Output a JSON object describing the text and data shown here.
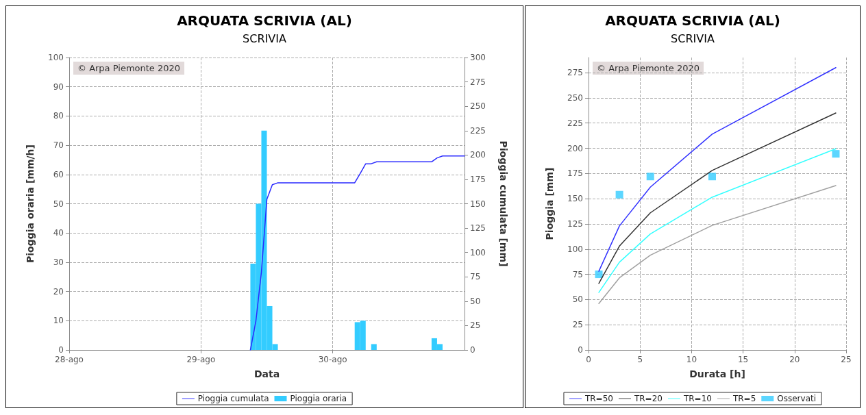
{
  "chart_data": [
    {
      "type": "bar",
      "title": "ARQUATA SCRIVIA (AL)",
      "subtitle": "SCRIVIA",
      "xlabel": "Data",
      "ylabel": "Pioggia oraria [mm/h]",
      "y2label": "Pioggia cumulata [mm]",
      "annotations": [
        "© Arpa Piemonte 2020"
      ],
      "xlim": [
        "2020-08-28",
        "2020-08-31"
      ],
      "xticks": [
        {
          "value": "2020-08-28",
          "label": "28-ago"
        },
        {
          "value": "2020-08-29",
          "label": "29-ago"
        },
        {
          "value": "2020-08-30",
          "label": "30-ago"
        }
      ],
      "ylim": [
        0,
        100
      ],
      "yticks": [
        0,
        10,
        20,
        30,
        40,
        50,
        60,
        70,
        80,
        90,
        100
      ],
      "y2lim": [
        0,
        300
      ],
      "y2ticks": [
        0,
        25,
        50,
        75,
        100,
        125,
        150,
        175,
        200,
        225,
        250,
        275,
        300
      ],
      "grid": true,
      "legend": "bottom",
      "series": [
        {
          "name": "Pioggia cumulata",
          "type": "line",
          "axis": "y2",
          "color": "#2a2aff",
          "x": [
            "2020-08-29T09:00",
            "2020-08-29T10:00",
            "2020-08-29T11:00",
            "2020-08-29T12:00",
            "2020-08-29T13:00",
            "2020-08-29T14:00",
            "2020-08-30T04:00",
            "2020-08-30T05:00",
            "2020-08-30T06:00",
            "2020-08-30T07:00",
            "2020-08-30T08:00",
            "2020-08-30T18:00",
            "2020-08-30T19:00",
            "2020-08-30T20:00",
            "2020-08-31T00:00"
          ],
          "values": [
            0,
            29.5,
            79.5,
            154.5,
            169.5,
            171.5,
            171.5,
            181,
            191,
            191,
            193,
            193,
            197,
            199,
            199
          ]
        },
        {
          "name": "Pioggia oraria",
          "axis": "y",
          "color": "#33ccff",
          "x": [
            "2020-08-29T09:30",
            "2020-08-29T10:30",
            "2020-08-29T11:30",
            "2020-08-29T12:30",
            "2020-08-29T13:30",
            "2020-08-30T04:30",
            "2020-08-30T05:30",
            "2020-08-30T07:30",
            "2020-08-30T18:30",
            "2020-08-30T19:30"
          ],
          "values": [
            29.5,
            50,
            75,
            15,
            2,
            9.5,
            10,
            2,
            4,
            2
          ]
        }
      ]
    },
    {
      "type": "line",
      "title": "ARQUATA SCRIVIA (AL)",
      "subtitle": "SCRIVIA",
      "xlabel": "Durata [h]",
      "ylabel": "Pioggia [mm]",
      "annotations": [
        "© Arpa Piemonte 2020"
      ],
      "xlim": [
        0,
        25
      ],
      "xticks": [
        0,
        5,
        10,
        15,
        20,
        25
      ],
      "ylim": [
        0,
        290
      ],
      "yticks": [
        0,
        25,
        50,
        75,
        100,
        125,
        150,
        175,
        200,
        225,
        250,
        275
      ],
      "grid": true,
      "legend": "bottom",
      "marker": "none",
      "series": [
        {
          "name": "TR=50",
          "color": "#3333ff",
          "x": [
            1,
            3,
            6,
            12,
            24
          ],
          "values": [
            78,
            123,
            161.5,
            214,
            280
          ]
        },
        {
          "name": "TR=20",
          "color": "#333333",
          "x": [
            1,
            3,
            6,
            12,
            24
          ],
          "values": [
            66,
            103,
            136,
            178,
            235
          ]
        },
        {
          "name": "TR=10",
          "color": "#33ffff",
          "x": [
            1,
            3,
            6,
            12,
            24
          ],
          "values": [
            57,
            87,
            115,
            151.5,
            199.5
          ]
        },
        {
          "name": "TR=5",
          "color": "#a0a0a0",
          "x": [
            1,
            3,
            6,
            12,
            24
          ],
          "values": [
            46,
            71.5,
            94,
            123.5,
            163
          ]
        },
        {
          "name": "Osservati",
          "type": "scatter",
          "marker": "square",
          "color": "#33ccff",
          "x": [
            1,
            3,
            6,
            12,
            24
          ],
          "values": [
            75,
            154,
            172,
            172,
            194.5
          ]
        }
      ]
    }
  ]
}
